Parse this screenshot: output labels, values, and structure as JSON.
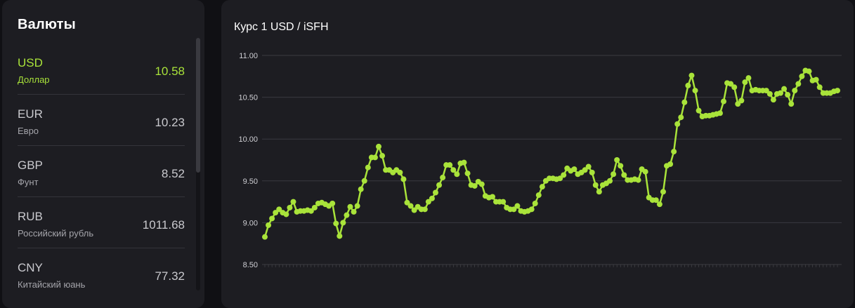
{
  "sidebar": {
    "title": "Валюты",
    "items": [
      {
        "code": "USD",
        "name": "Доллар",
        "rate": "10.58",
        "active": true
      },
      {
        "code": "EUR",
        "name": "Евро",
        "rate": "10.23",
        "active": false
      },
      {
        "code": "GBP",
        "name": "Фунт",
        "rate": "8.52",
        "active": false
      },
      {
        "code": "RUB",
        "name": "Российский рубль",
        "rate": "1011.68",
        "active": false
      },
      {
        "code": "CNY",
        "name": "Китайский юань",
        "rate": "77.32",
        "active": false
      }
    ]
  },
  "chart": {
    "title": "Курс 1 USD / iSFH"
  },
  "colors": {
    "accent": "#a9e33a",
    "panel": "#1d1d22",
    "background": "#101014",
    "grid": "#3a3a40"
  },
  "chart_data": {
    "type": "line",
    "title": "Курс 1 USD / iSFH",
    "xlabel": "",
    "ylabel": "",
    "ylim": [
      8.5,
      11.0
    ],
    "yticks": [
      "8.50",
      "9.00",
      "9.50",
      "10.00",
      "10.50",
      "11.00"
    ],
    "grid": true,
    "legend": "none",
    "series": [
      {
        "values": [
          8.83,
          8.97,
          9.05,
          9.12,
          9.16,
          9.12,
          9.1,
          9.18,
          9.25,
          9.13,
          9.14,
          9.14,
          9.15,
          9.14,
          9.18,
          9.23,
          9.24,
          9.22,
          9.2,
          9.23,
          8.99,
          8.84,
          9.0,
          9.09,
          9.19,
          9.13,
          9.2,
          9.4,
          9.5,
          9.66,
          9.78,
          9.78,
          9.91,
          9.8,
          9.63,
          9.63,
          9.6,
          9.63,
          9.6,
          9.52,
          9.24,
          9.2,
          9.15,
          9.19,
          9.16,
          9.16,
          9.25,
          9.29,
          9.36,
          9.45,
          9.54,
          9.69,
          9.69,
          9.63,
          9.58,
          9.71,
          9.72,
          9.59,
          9.45,
          9.44,
          9.49,
          9.46,
          9.32,
          9.3,
          9.31,
          9.25,
          9.25,
          9.25,
          9.18,
          9.16,
          9.16,
          9.2,
          9.14,
          9.13,
          9.14,
          9.16,
          9.23,
          9.33,
          9.43,
          9.5,
          9.53,
          9.53,
          9.52,
          9.53,
          9.57,
          9.65,
          9.62,
          9.64,
          9.58,
          9.6,
          9.63,
          9.67,
          9.6,
          9.45,
          9.37,
          9.45,
          9.47,
          9.5,
          9.58,
          9.75,
          9.68,
          9.57,
          9.51,
          9.51,
          9.52,
          9.51,
          9.64,
          9.61,
          9.3,
          9.27,
          9.27,
          9.22,
          9.37,
          9.68,
          9.7,
          9.85,
          10.18,
          10.26,
          10.44,
          10.64,
          10.76,
          10.58,
          10.34,
          10.27,
          10.28,
          10.28,
          10.29,
          10.3,
          10.31,
          10.45,
          10.67,
          10.66,
          10.62,
          10.42,
          10.46,
          10.68,
          10.73,
          10.58,
          10.59,
          10.58,
          10.58,
          10.58,
          10.54,
          10.47,
          10.54,
          10.55,
          10.6,
          10.53,
          10.42,
          10.58,
          10.66,
          10.75,
          10.82,
          10.81,
          10.7,
          10.71,
          10.62,
          10.55,
          10.55,
          10.55,
          10.57,
          10.58
        ]
      }
    ]
  }
}
